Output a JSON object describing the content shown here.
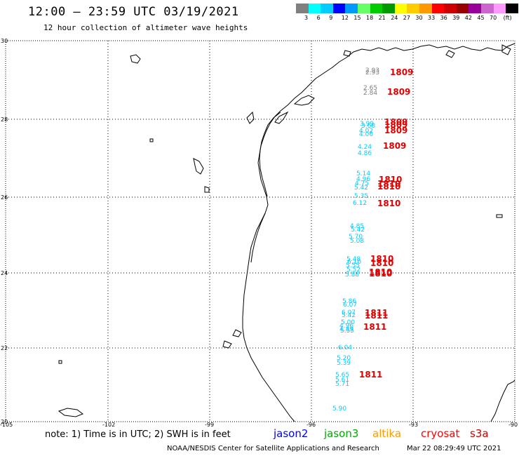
{
  "header": {
    "title": "12:00 – 23:59 UTC 03/19/2021",
    "subtitle": "12 hour collection of altimeter wave heights"
  },
  "legend": {
    "unit": "(ft)",
    "swatches": [
      "#808080",
      "#00ffff",
      "#00ccff",
      "#0000ff",
      "#0099ff",
      "#66ff66",
      "#00cc00",
      "#009900",
      "#ffff00",
      "#ffcc00",
      "#ff9900",
      "#ff0000",
      "#cc0000",
      "#990000",
      "#990099",
      "#cc66cc",
      "#ff99ff",
      "#000000"
    ],
    "labels": [
      "3",
      "6",
      "9",
      "12",
      "15",
      "18",
      "21",
      "24",
      "27",
      "30",
      "33",
      "36",
      "39",
      "42",
      "45",
      "70"
    ]
  },
  "axes": {
    "x_ticks": [
      "-105",
      "-102",
      "-99",
      "-96",
      "-93",
      "-90"
    ],
    "y_ticks": [
      "30",
      "28",
      "26",
      "24",
      "22",
      "20"
    ]
  },
  "observations": [
    {
      "v": "2.93",
      "c": "#808080"
    },
    {
      "v": "2.93",
      "c": "#808080"
    },
    {
      "v": "2.65",
      "c": "#808080"
    },
    {
      "v": "2.84",
      "c": "#808080"
    },
    {
      "v": "3.99",
      "c": "#00ccff"
    },
    {
      "v": "3.68",
      "c": "#00ccff"
    },
    {
      "v": "4.02",
      "c": "#00ccff"
    },
    {
      "v": "4.06",
      "c": "#00ccff"
    },
    {
      "v": "4.24",
      "c": "#00ccff"
    },
    {
      "v": "4.86",
      "c": "#00ccff"
    },
    {
      "v": "5.14",
      "c": "#00ccff"
    },
    {
      "v": "4.96",
      "c": "#00ccff"
    },
    {
      "v": "4.75",
      "c": "#00ccff"
    },
    {
      "v": "5.42",
      "c": "#00ccff"
    },
    {
      "v": "5.35",
      "c": "#00ccff"
    },
    {
      "v": "6.12",
      "c": "#00ccff"
    },
    {
      "v": "4.85",
      "c": "#00ccff"
    },
    {
      "v": "5.42",
      "c": "#00ccff"
    },
    {
      "v": "5.70",
      "c": "#00ccff"
    },
    {
      "v": "5.08",
      "c": "#00ccff"
    },
    {
      "v": "5.48",
      "c": "#00ccff"
    },
    {
      "v": "6.10",
      "c": "#00ccff"
    },
    {
      "v": "5.55",
      "c": "#00ccff"
    },
    {
      "v": "5.52",
      "c": "#00ccff"
    },
    {
      "v": "5.88",
      "c": "#00ccff"
    },
    {
      "v": "5.86",
      "c": "#00ccff"
    },
    {
      "v": "6.07",
      "c": "#00ccff"
    },
    {
      "v": "6.07",
      "c": "#00ccff"
    },
    {
      "v": "5.42",
      "c": "#00ccff"
    },
    {
      "v": "5.00",
      "c": "#00ccff"
    },
    {
      "v": "4.96",
      "c": "#00ccff"
    },
    {
      "v": "4.89",
      "c": "#00ccff"
    },
    {
      "v": "5.55",
      "c": "#00ccff"
    },
    {
      "v": "6.04",
      "c": "#00ccff"
    },
    {
      "v": "5.20",
      "c": "#00ccff"
    },
    {
      "v": "5.39",
      "c": "#00ccff"
    },
    {
      "v": "5.65",
      "c": "#00ccff"
    },
    {
      "v": "5.61",
      "c": "#00ccff"
    },
    {
      "v": "5.71",
      "c": "#00ccff"
    },
    {
      "v": "5.90",
      "c": "#00ccff"
    }
  ],
  "time_labels": [
    "1809",
    "1809",
    "1809",
    "1809",
    "1809",
    "1809",
    "1810",
    "1810",
    "1810",
    "1810",
    "1810",
    "1810",
    "1810",
    "1810",
    "1811",
    "1811",
    "1811",
    "1811"
  ],
  "footer": {
    "note": "note:  1) Time is in UTC;  2) SWH is in feet",
    "satellites": [
      {
        "name": "jason2",
        "color": "#0000ff"
      },
      {
        "name": "jason3",
        "color": "#00aa00"
      },
      {
        "name": "altika",
        "color": "#ff9900"
      },
      {
        "name": "cryosat",
        "color": "#ff0000"
      },
      {
        "name": "s3a",
        "color": "#cc0000"
      }
    ],
    "credit": "NOAA/NESDIS Center for Satellite Applications and Research",
    "timestamp": "Mar 22 08:29:49 UTC 2021"
  }
}
